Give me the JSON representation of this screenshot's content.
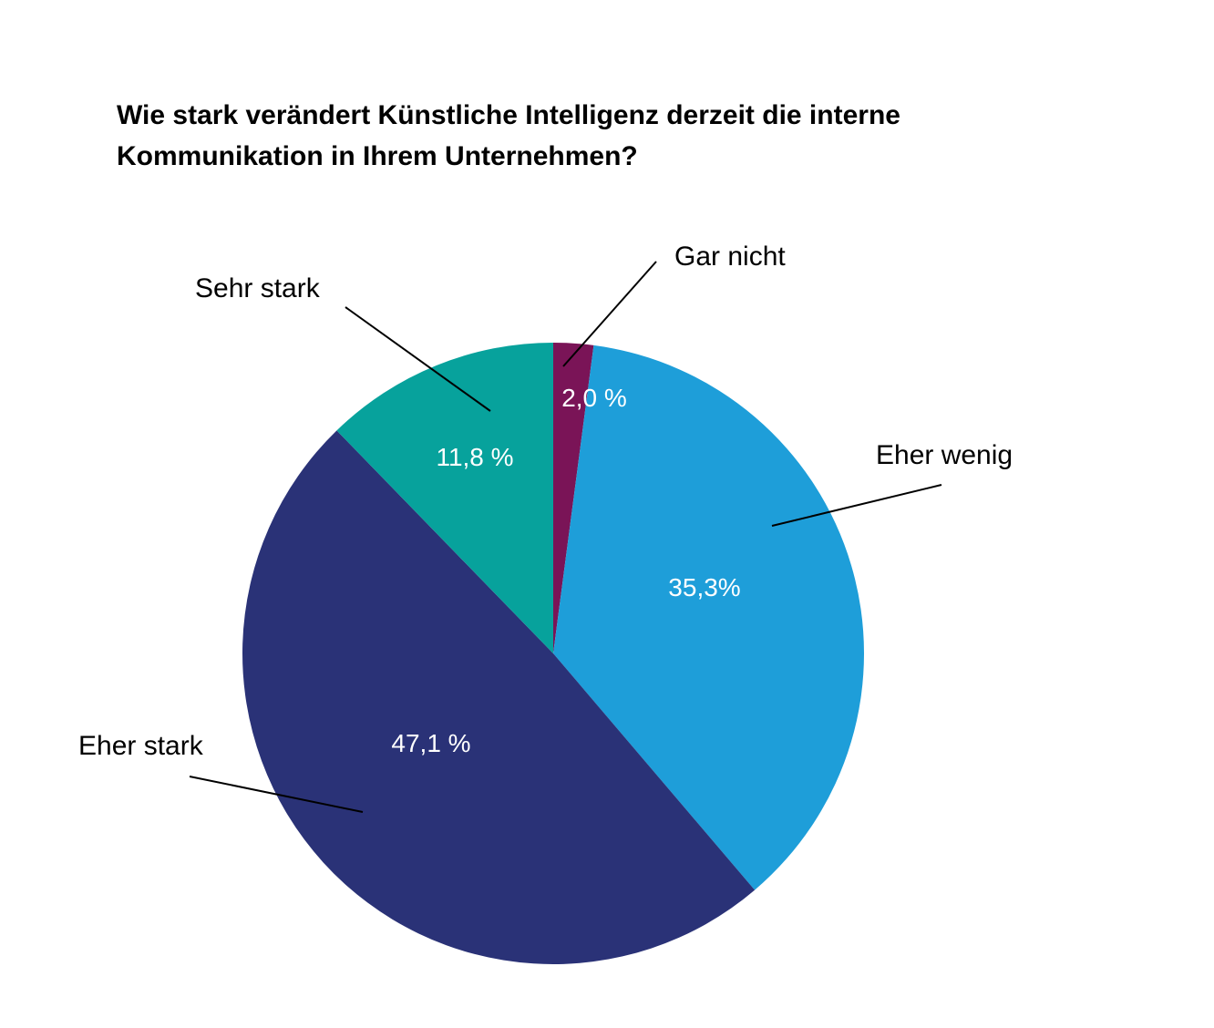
{
  "title_lines": [
    "Wie stark verändert Künstliche Intelligenz derzeit die interne",
    "Kommunikation in Ihrem Unternehmen?"
  ],
  "chart_data": {
    "type": "pie",
    "title": "Wie stark verändert Künstliche Intelligenz derzeit die interne Kommunikation in Ihrem Unternehmen?",
    "start": "12 o'clock, clockwise",
    "slices": [
      {
        "label": "Gar nicht",
        "value": 2.0,
        "value_label": "2,0 %",
        "color": "#7a1457"
      },
      {
        "label": "Eher wenig",
        "value": 35.3,
        "value_label": "35,3%",
        "color": "#1e9ed9"
      },
      {
        "label": "Eher stark",
        "value": 47.1,
        "value_label": "47,1 %",
        "color": "#2a3277"
      },
      {
        "label": "Sehr stark",
        "value": 11.8,
        "value_label": "11,8 %",
        "color": "#07a29c"
      }
    ]
  }
}
